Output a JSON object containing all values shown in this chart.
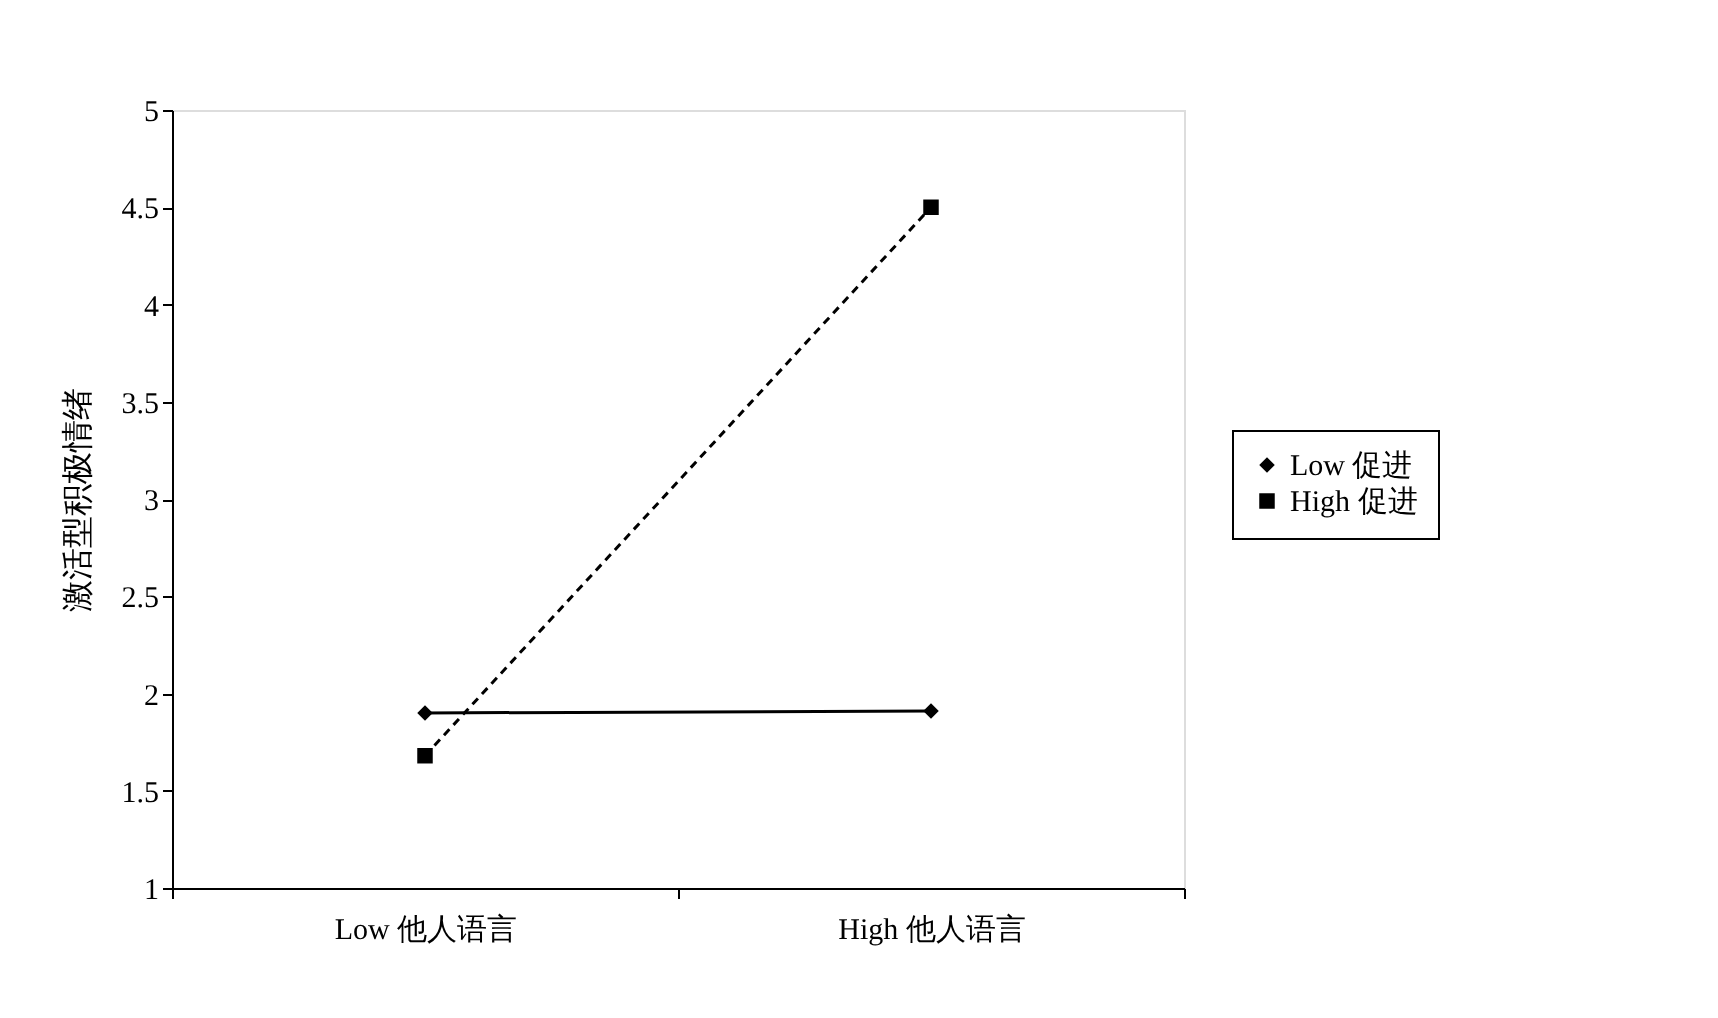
{
  "chart_data": {
    "type": "line",
    "ylabel": "激活型积极情绪",
    "categories": [
      "Low 他人语言",
      "High 他人语言"
    ],
    "series": [
      {
        "name": "Low 促进",
        "color": "#000000",
        "values": [
          1.9,
          1.91
        ],
        "marker": "diamond",
        "line_style": "solid"
      },
      {
        "name": "High 促进",
        "color": "#000000",
        "values": [
          1.68,
          4.5
        ],
        "marker": "square",
        "line_style": "dashed"
      }
    ],
    "ylim": [
      1,
      5
    ],
    "yticks": [
      1,
      1.5,
      2,
      2.5,
      3,
      3.5,
      4,
      4.5,
      5
    ],
    "grid": false,
    "legend": "right"
  }
}
